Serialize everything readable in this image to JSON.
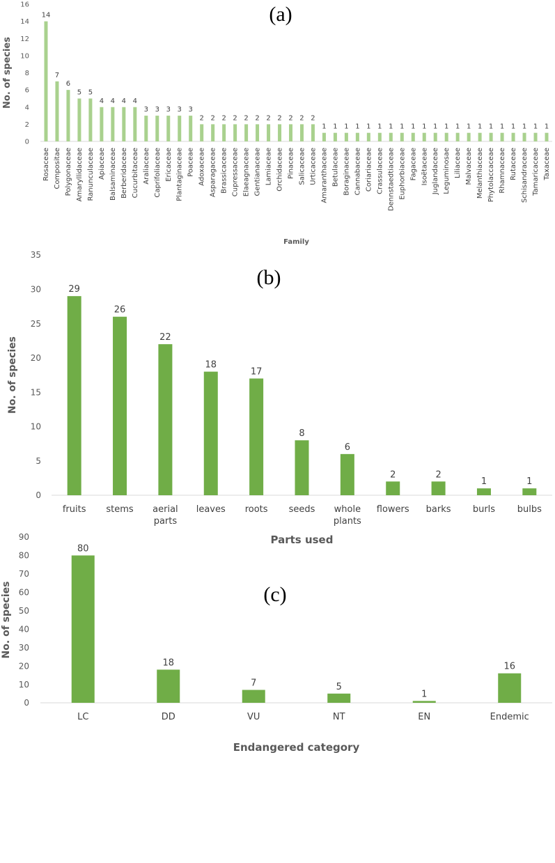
{
  "bar_color": "#70AD47",
  "bar_color_a": "#A9D18E",
  "chart_data": [
    {
      "type": "bar",
      "panel": "(a)",
      "title": "",
      "xlabel": "Family",
      "ylabel": "No. of species",
      "ylim": [
        0,
        16
      ],
      "yticks": [
        "0",
        "2",
        "4",
        "6",
        "8",
        "10",
        "12",
        "14",
        "16"
      ],
      "categories": [
        "Rosaceae",
        "Compositae",
        "Polygonaceae",
        "Amaryllidaceae",
        "Ranunculaceae",
        "Apiaceae",
        "Balsaminaceae",
        "Berberidaceae",
        "Cucurbitaceae",
        "Araliaceae",
        "Caprifoliaceae",
        "Ericaceae",
        "Plantaginaceae",
        "Poaceae",
        "Adoxaceae",
        "Asparagaceae",
        "Brassicaceae",
        "Cupressaceae",
        "Elaeagnaceae",
        "Gentianaceae",
        "Lamiaceae",
        "Orchidaceae",
        "Pinaceae",
        "Salicaceae",
        "Urticaceae",
        "Amaranthaceae",
        "Betulaceae",
        "Boraginaceae",
        "Cannabaceae",
        "Coriariaceae",
        "Crassulaceae",
        "Dennstaedtiaceae",
        "Euphorbiaceae",
        "Fagaceae",
        "Isoëtaceae",
        "Juglandaceae",
        "Leguminosae",
        "Liliaceae",
        "Malvaceae",
        "Melanthiaceae",
        "Phytolaccaceae",
        "Rhamnaceae",
        "Rutaceae",
        "Schisandraceae",
        "Tamaricaceae",
        "Taxaceae"
      ],
      "values": [
        14,
        7,
        6,
        5,
        5,
        4,
        4,
        4,
        4,
        3,
        3,
        3,
        3,
        3,
        2,
        2,
        2,
        2,
        2,
        2,
        2,
        2,
        2,
        2,
        2,
        1,
        1,
        1,
        1,
        1,
        1,
        1,
        1,
        1,
        1,
        1,
        1,
        1,
        1,
        1,
        1,
        1,
        1,
        1,
        1,
        1
      ],
      "data_labels": [
        "14",
        "7",
        "6",
        "5",
        "5",
        "4",
        "4",
        "4",
        "4",
        "3",
        "3",
        "3",
        "3",
        "3",
        "2",
        "2",
        "2",
        "2",
        "2",
        "2",
        "2",
        "2",
        "2",
        "2",
        "2",
        "1",
        "1",
        "1",
        "1",
        "1",
        "1",
        "1",
        "1",
        "1",
        "1",
        "1",
        "1",
        "1",
        "1",
        "1",
        "1",
        "1",
        "1",
        "1",
        "1",
        "1"
      ]
    },
    {
      "type": "bar",
      "panel": "(b)",
      "title": "",
      "xlabel": "Parts used",
      "ylabel": "No. of species",
      "ylim": [
        0,
        35
      ],
      "yticks": [
        "0",
        "5",
        "10",
        "15",
        "20",
        "25",
        "30",
        "35"
      ],
      "categories": [
        [
          "fruits"
        ],
        [
          "stems"
        ],
        [
          "aerial",
          "parts"
        ],
        [
          "leaves"
        ],
        [
          "roots"
        ],
        [
          "seeds"
        ],
        [
          "whole",
          "plants"
        ],
        [
          "flowers"
        ],
        [
          "barks"
        ],
        [
          "burls"
        ],
        [
          "bulbs"
        ]
      ],
      "values": [
        29,
        26,
        22,
        18,
        17,
        8,
        6,
        2,
        2,
        1,
        1
      ],
      "data_labels": [
        "29",
        "26",
        "22",
        "18",
        "17",
        "8",
        "6",
        "2",
        "2",
        "1",
        "1"
      ]
    },
    {
      "type": "bar",
      "panel": "(c)",
      "title": "",
      "xlabel": "Endangered category",
      "ylabel": "No. of species",
      "ylim": [
        0,
        90
      ],
      "yticks": [
        "0",
        "10",
        "20",
        "30",
        "40",
        "50",
        "60",
        "70",
        "80",
        "90"
      ],
      "categories": [
        "LC",
        "DD",
        "VU",
        "NT",
        "EN",
        "Endemic"
      ],
      "values": [
        80,
        18,
        7,
        5,
        1,
        16
      ],
      "data_labels": [
        "80",
        "18",
        "7",
        "5",
        "1",
        "16"
      ]
    }
  ]
}
